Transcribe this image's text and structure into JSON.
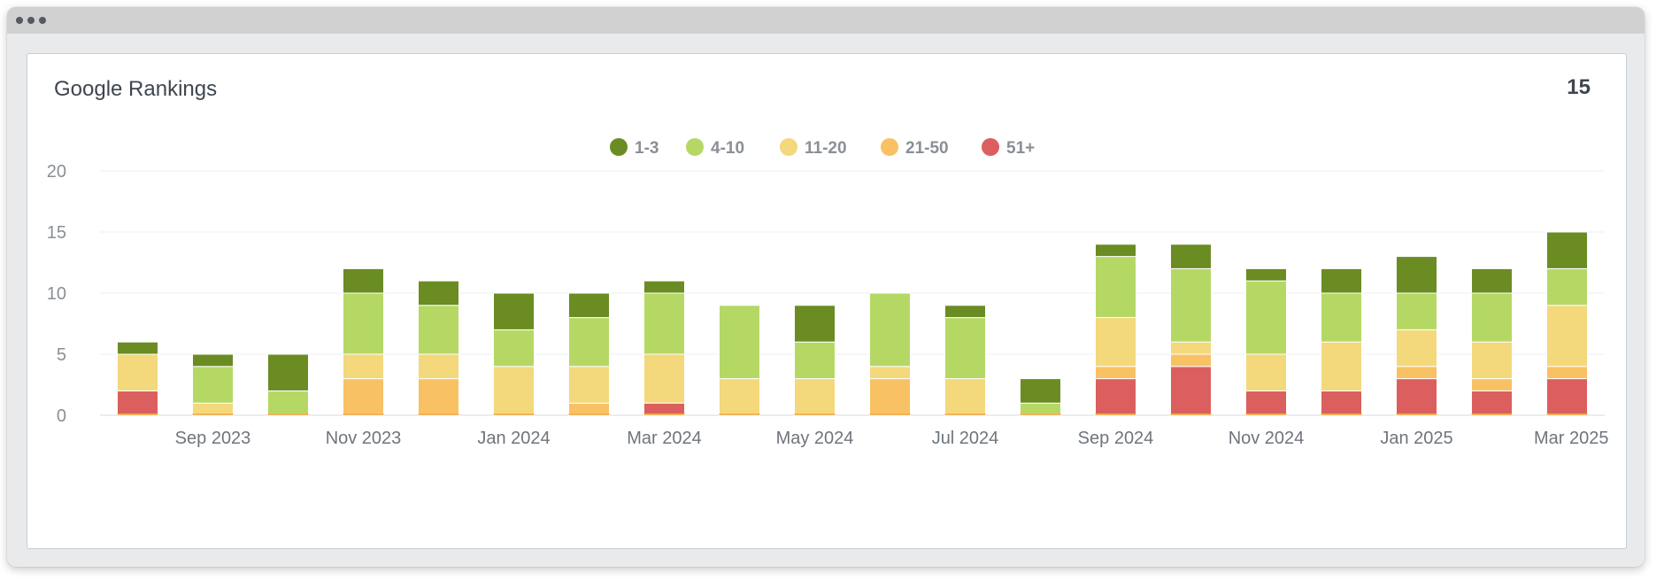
{
  "card": {
    "title": "Google Rankings",
    "value": "15"
  },
  "colors": {
    "1-3": "#6a8c23",
    "4-10": "#b5d865",
    "11-20": "#f3d87c",
    "21-50": "#f8c164",
    "51+": "#db5f5e"
  },
  "chart_data": {
    "type": "bar",
    "stacked": true,
    "title": "Google Rankings",
    "xlabel": "",
    "ylabel": "",
    "ylim": [
      0,
      20
    ],
    "yticks": [
      0,
      5,
      10,
      15,
      20
    ],
    "grid": true,
    "legend": "top-center",
    "categories": [
      "Aug 2023",
      "Sep 2023",
      "Oct 2023",
      "Nov 2023",
      "Dec 2023",
      "Jan 2024",
      "Feb 2024",
      "Mar 2024",
      "Apr 2024",
      "May 2024",
      "Jun 2024",
      "Jul 2024",
      "Aug 2024",
      "Sep 2024",
      "Oct 2024",
      "Nov 2024",
      "Dec 2024",
      "Jan 2025",
      "Feb 2025",
      "Mar 2025"
    ],
    "xtick_labels": [
      "Sep 2023",
      "Nov 2023",
      "Jan 2024",
      "Mar 2024",
      "May 2024",
      "Jul 2024",
      "Sep 2024",
      "Nov 2024",
      "Jan 2025",
      "Mar 2025"
    ],
    "series": [
      {
        "name": "51+",
        "values": [
          2,
          0,
          0,
          0,
          0,
          0,
          0,
          1,
          0,
          0,
          0,
          0,
          0,
          3,
          4,
          2,
          2,
          3,
          2,
          3
        ]
      },
      {
        "name": "21-50",
        "values": [
          0,
          0,
          0,
          3,
          3,
          0,
          1,
          0,
          0,
          0,
          3,
          0,
          0,
          1,
          1,
          0,
          0,
          1,
          1,
          1
        ]
      },
      {
        "name": "11-20",
        "values": [
          3,
          1,
          0,
          2,
          2,
          4,
          3,
          4,
          3,
          3,
          1,
          3,
          0,
          4,
          1,
          3,
          4,
          3,
          3,
          5
        ]
      },
      {
        "name": "4-10",
        "values": [
          0,
          3,
          2,
          5,
          4,
          3,
          4,
          5,
          6,
          3,
          6,
          5,
          1,
          5,
          6,
          6,
          4,
          3,
          4,
          3
        ]
      },
      {
        "name": "1-3",
        "values": [
          1,
          1,
          3,
          2,
          2,
          3,
          2,
          1,
          0,
          3,
          0,
          1,
          2,
          1,
          2,
          1,
          2,
          3,
          2,
          3
        ]
      }
    ],
    "legend_order": [
      "1-3",
      "4-10",
      "11-20",
      "21-50",
      "51+"
    ]
  }
}
